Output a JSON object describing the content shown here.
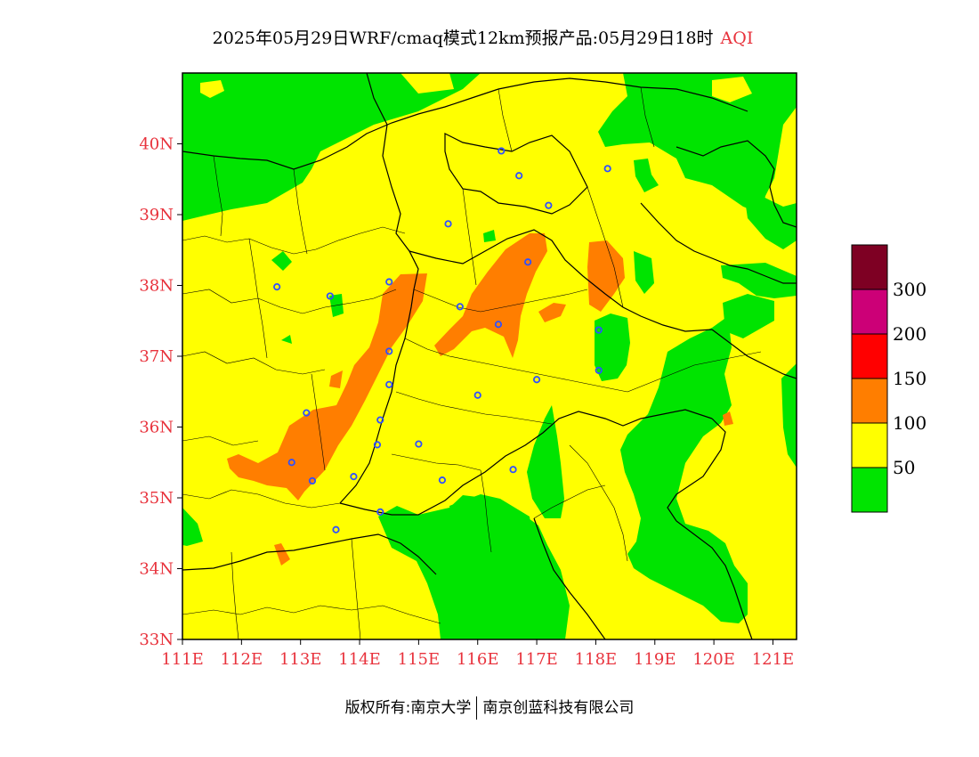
{
  "title": {
    "main": "2025年05月29日WRF/cmaq模式12km预报产品:05月29日18时",
    "variable": "AQI"
  },
  "map": {
    "lat_labels": [
      "40N",
      "39N",
      "38N",
      "37N",
      "36N",
      "35N",
      "34N",
      "33N"
    ],
    "lon_labels": [
      "111E",
      "112E",
      "113E",
      "114E",
      "115E",
      "116E",
      "117E",
      "118E",
      "119E",
      "120E",
      "121E"
    ],
    "lat_range": [
      33,
      41
    ],
    "lon_range": [
      111,
      121.4
    ],
    "category_colors": {
      "good": "#00e400",
      "moderate": "#ffff00",
      "unhealthy_sensitive": "#ff7e00"
    },
    "boundary_color": "#000000",
    "city_marker_color": "#3050ff",
    "cities": [
      {
        "lon": 116.4,
        "lat": 39.9
      },
      {
        "lon": 116.7,
        "lat": 39.55
      },
      {
        "lon": 117.2,
        "lat": 39.13
      },
      {
        "lon": 118.2,
        "lat": 39.65
      },
      {
        "lon": 115.5,
        "lat": 38.87
      },
      {
        "lon": 112.6,
        "lat": 37.98
      },
      {
        "lon": 113.5,
        "lat": 37.85
      },
      {
        "lon": 114.5,
        "lat": 38.05
      },
      {
        "lon": 115.7,
        "lat": 37.7
      },
      {
        "lon": 116.85,
        "lat": 38.33
      },
      {
        "lon": 116.35,
        "lat": 37.45
      },
      {
        "lon": 114.5,
        "lat": 37.07
      },
      {
        "lon": 114.5,
        "lat": 36.6
      },
      {
        "lon": 116.0,
        "lat": 36.45
      },
      {
        "lon": 117.0,
        "lat": 36.67
      },
      {
        "lon": 118.05,
        "lat": 37.37
      },
      {
        "lon": 118.05,
        "lat": 36.8
      },
      {
        "lon": 113.1,
        "lat": 36.2
      },
      {
        "lon": 114.35,
        "lat": 36.1
      },
      {
        "lon": 114.3,
        "lat": 35.75
      },
      {
        "lon": 115.0,
        "lat": 35.76
      },
      {
        "lon": 112.85,
        "lat": 35.5
      },
      {
        "lon": 113.2,
        "lat": 35.24
      },
      {
        "lon": 113.9,
        "lat": 35.3
      },
      {
        "lon": 115.4,
        "lat": 35.25
      },
      {
        "lon": 116.6,
        "lat": 35.4
      },
      {
        "lon": 114.35,
        "lat": 34.8
      },
      {
        "lon": 113.6,
        "lat": 34.55
      }
    ]
  },
  "legend": {
    "colors": [
      "#7e0023",
      "#cc0077",
      "#ff0000",
      "#ff7e00",
      "#ffff00",
      "#00e400"
    ],
    "labels": [
      "300",
      "200",
      "150",
      "100",
      "50"
    ]
  },
  "footer": {
    "left": "版权所有:南京大学",
    "right": "南京创蓝科技有限公司"
  }
}
